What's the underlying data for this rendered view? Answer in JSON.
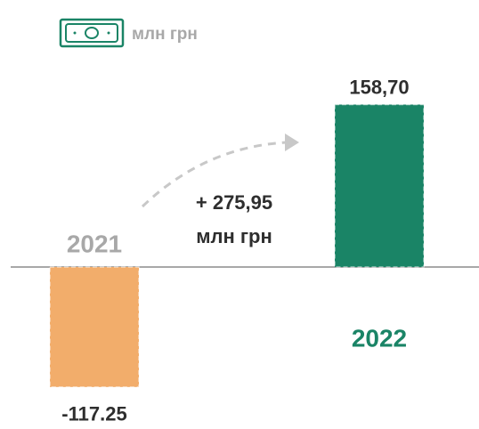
{
  "chart_data": {
    "type": "bar",
    "unit": "млн грн",
    "categories": [
      "2021",
      "2022"
    ],
    "values": [
      -117.25,
      158.7
    ],
    "value_labels": [
      "-117.25",
      "158,70"
    ],
    "colors": [
      "#f2ad6b",
      "#1a8466"
    ],
    "annotation": [
      "+ 275,95",
      "млн грн"
    ]
  }
}
